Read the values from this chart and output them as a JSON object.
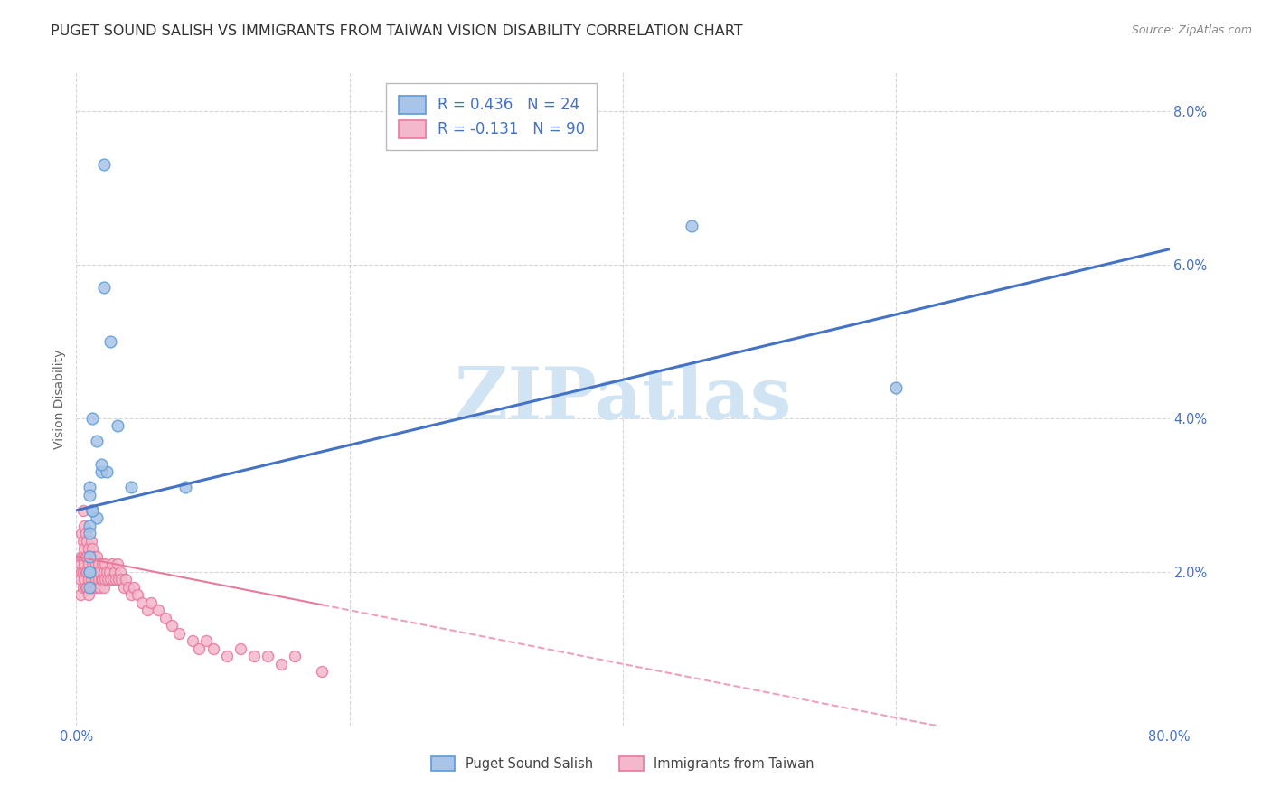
{
  "title": "PUGET SOUND SALISH VS IMMIGRANTS FROM TAIWAN VISION DISABILITY CORRELATION CHART",
  "source": "Source: ZipAtlas.com",
  "ylabel": "Vision Disability",
  "xlim": [
    0,
    0.8
  ],
  "ylim": [
    0,
    0.085
  ],
  "ytick_vals": [
    0.0,
    0.02,
    0.04,
    0.06,
    0.08
  ],
  "ytick_labels": [
    "",
    "2.0%",
    "4.0%",
    "6.0%",
    "8.0%"
  ],
  "xtick_vals": [
    0.0,
    0.2,
    0.4,
    0.6,
    0.8
  ],
  "xtick_labels": [
    "0.0%",
    "",
    "",
    "",
    "80.0%"
  ],
  "blue_R": 0.436,
  "blue_N": 24,
  "pink_R": -0.131,
  "pink_N": 90,
  "blue_scatter_color": "#a8c4e8",
  "blue_edge_color": "#5b9bd5",
  "pink_scatter_color": "#f4b8cc",
  "pink_edge_color": "#e8789a",
  "blue_line_color": "#4472c4",
  "pink_line_color": "#e87a9a",
  "grid_color": "#cccccc",
  "tick_color": "#4472c4",
  "ylabel_color": "#666666",
  "title_color": "#333333",
  "source_color": "#888888",
  "watermark_color": "#d0e4f4",
  "background_color": "#ffffff",
  "blue_scatter_x": [
    0.02,
    0.02,
    0.025,
    0.012,
    0.015,
    0.018,
    0.022,
    0.01,
    0.01,
    0.012,
    0.015,
    0.03,
    0.08,
    0.04,
    0.012,
    0.01,
    0.01,
    0.01,
    0.01,
    0.018,
    0.01,
    0.01,
    0.45,
    0.6
  ],
  "blue_scatter_y": [
    0.073,
    0.057,
    0.05,
    0.04,
    0.037,
    0.033,
    0.033,
    0.031,
    0.03,
    0.028,
    0.027,
    0.039,
    0.031,
    0.031,
    0.028,
    0.026,
    0.025,
    0.022,
    0.02,
    0.034,
    0.02,
    0.018,
    0.065,
    0.044
  ],
  "pink_scatter_x": [
    0.003,
    0.003,
    0.003,
    0.004,
    0.004,
    0.004,
    0.005,
    0.005,
    0.005,
    0.005,
    0.005,
    0.006,
    0.006,
    0.006,
    0.006,
    0.007,
    0.007,
    0.007,
    0.007,
    0.008,
    0.008,
    0.008,
    0.008,
    0.009,
    0.009,
    0.009,
    0.009,
    0.01,
    0.01,
    0.01,
    0.011,
    0.011,
    0.012,
    0.012,
    0.012,
    0.013,
    0.013,
    0.013,
    0.014,
    0.014,
    0.015,
    0.015,
    0.015,
    0.016,
    0.016,
    0.017,
    0.017,
    0.018,
    0.019,
    0.019,
    0.02,
    0.02,
    0.021,
    0.021,
    0.022,
    0.023,
    0.024,
    0.025,
    0.026,
    0.027,
    0.028,
    0.029,
    0.03,
    0.031,
    0.032,
    0.033,
    0.035,
    0.036,
    0.038,
    0.04,
    0.042,
    0.045,
    0.048,
    0.052,
    0.055,
    0.06,
    0.065,
    0.07,
    0.075,
    0.085,
    0.09,
    0.095,
    0.1,
    0.11,
    0.12,
    0.13,
    0.14,
    0.15,
    0.16,
    0.18
  ],
  "pink_scatter_y": [
    0.021,
    0.019,
    0.017,
    0.025,
    0.022,
    0.02,
    0.028,
    0.024,
    0.022,
    0.02,
    0.018,
    0.026,
    0.023,
    0.021,
    0.019,
    0.025,
    0.022,
    0.02,
    0.018,
    0.024,
    0.022,
    0.02,
    0.018,
    0.023,
    0.021,
    0.019,
    0.017,
    0.022,
    0.02,
    0.018,
    0.024,
    0.019,
    0.023,
    0.021,
    0.018,
    0.022,
    0.02,
    0.018,
    0.021,
    0.019,
    0.022,
    0.02,
    0.018,
    0.021,
    0.019,
    0.02,
    0.018,
    0.019,
    0.021,
    0.019,
    0.02,
    0.018,
    0.021,
    0.019,
    0.02,
    0.019,
    0.02,
    0.019,
    0.021,
    0.019,
    0.02,
    0.019,
    0.021,
    0.019,
    0.02,
    0.019,
    0.018,
    0.019,
    0.018,
    0.017,
    0.018,
    0.017,
    0.016,
    0.015,
    0.016,
    0.015,
    0.014,
    0.013,
    0.012,
    0.011,
    0.01,
    0.011,
    0.01,
    0.009,
    0.01,
    0.009,
    0.009,
    0.008,
    0.009,
    0.007
  ],
  "title_fontsize": 11.5,
  "axis_label_fontsize": 10,
  "tick_fontsize": 10.5,
  "legend_fontsize": 12,
  "source_fontsize": 9,
  "watermark_fontsize": 58
}
